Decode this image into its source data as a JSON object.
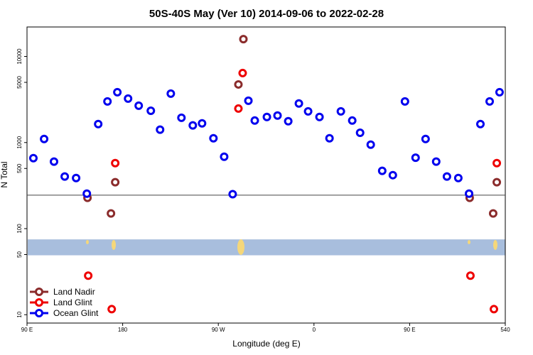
{
  "chart_data": {
    "type": "scatter",
    "title": "50S-40S May (Ver 10)   2014-09-06 to 2022-02-28",
    "x_label": "Longitude (deg E)",
    "y_label": "N Total",
    "log_y": true,
    "xlim": [
      90,
      540
    ],
    "ylim": [
      8,
      22000
    ],
    "xticks": [
      {
        "value": 90,
        "label": "90 E"
      },
      180,
      {
        "value": 270,
        "label": "90 W"
      },
      {
        "value": 360,
        "label": "0"
      },
      {
        "value": 450,
        "label": "90 E"
      },
      540
    ],
    "yticks": [
      10,
      50,
      100,
      500,
      1000,
      5000,
      10000
    ],
    "reference_line": 245,
    "band": [
      49,
      75
    ],
    "band_color": "#a8bedd",
    "legend": "bottom-left",
    "series": [
      {
        "name": "Land Nadir",
        "color": "#8b2c2c",
        "x": [
          146.9,
          169.0,
          173.0,
          288.9,
          293.6,
          506.5,
          528.6,
          532.0
        ],
        "values": [
          228,
          150,
          346,
          4730,
          15900,
          228,
          150,
          346
        ]
      },
      {
        "name": "Land Glint",
        "color": "#ee0000",
        "x": [
          147.6,
          169.7,
          173.0,
          288.9,
          292.9,
          507.2,
          529.3,
          532.0
        ],
        "values": [
          28.4,
          11.6,
          577,
          2480,
          6410,
          28.4,
          11.6,
          577
        ]
      },
      {
        "name": "Ocean Glint",
        "color": "#0000ee",
        "x": [
          96.0,
          106.1,
          115.4,
          125.5,
          136.2,
          146.3,
          157.0,
          165.7,
          175.0,
          185.1,
          195.1,
          206.5,
          215.2,
          225.3,
          235.3,
          246.0,
          254.7,
          265.4,
          275.5,
          283.5,
          298.3,
          304.3,
          315.7,
          325.7,
          335.8,
          345.8,
          354.5,
          365.2,
          374.6,
          385.3,
          396.0,
          403.4,
          413.4,
          424.2,
          434.2,
          445.6,
          455.6,
          465.0,
          475.0,
          485.1,
          495.8,
          505.9,
          516.6,
          525.3,
          534.6
        ],
        "values": [
          659,
          1100,
          600,
          403,
          387,
          255,
          1640,
          3000,
          3840,
          3240,
          2680,
          2340,
          1410,
          3700,
          1940,
          1580,
          1670,
          1120,
          684,
          251,
          3060,
          1800,
          1980,
          2060,
          1770,
          2840,
          2300,
          1980,
          1120,
          2300,
          1800,
          1300,
          944,
          469,
          418,
          3000,
          667,
          1100,
          600,
          403,
          387,
          255,
          1640,
          3000,
          3840
        ]
      }
    ]
  }
}
